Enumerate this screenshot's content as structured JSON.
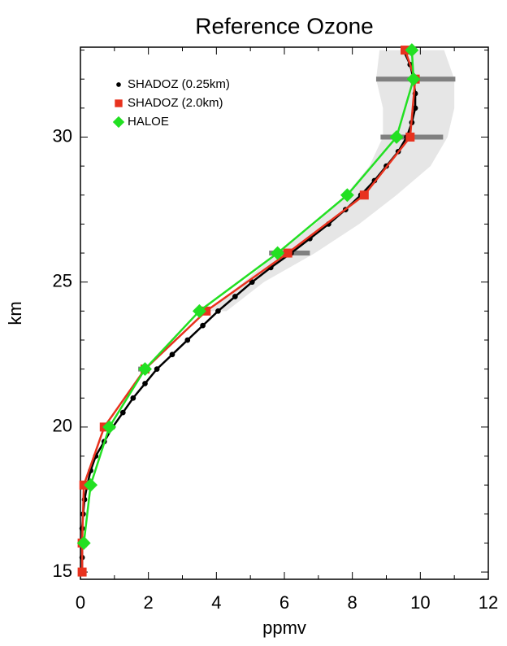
{
  "chart_data": {
    "type": "profile",
    "title": "Reference Ozone",
    "x_label": "ppmv",
    "y_label": "km",
    "xlim": [
      0,
      12
    ],
    "xticks": [
      0,
      2,
      4,
      6,
      8,
      10,
      12
    ],
    "xminorticks": [
      1,
      3,
      5,
      7,
      9,
      11
    ],
    "ylim": [
      14.75,
      33.1
    ],
    "yticks": [
      15,
      20,
      25,
      30
    ],
    "yminorticks": [
      16,
      17,
      18,
      19,
      21,
      22,
      23,
      24,
      26,
      27,
      28,
      29,
      31,
      32,
      33
    ],
    "band": {
      "color": "#e6e6e6",
      "y": [
        24,
        25,
        26,
        27,
        28,
        29,
        30,
        31,
        32,
        33
      ],
      "low": [
        3.8,
        4.8,
        5.8,
        6.9,
        7.8,
        8.5,
        8.9,
        8.9,
        8.7,
        8.8
      ],
      "high": [
        4.3,
        5.4,
        6.9,
        8.2,
        9.3,
        10.3,
        10.8,
        11.0,
        11.0,
        10.7
      ]
    },
    "error_bars": {
      "color": "#808080",
      "y": [
        22,
        26,
        30,
        32
      ],
      "low": [
        1.7,
        5.55,
        8.83,
        8.7
      ],
      "high": [
        2.05,
        6.75,
        10.67,
        11.03
      ]
    },
    "series": [
      {
        "name": "SHADOZ (0.25km)",
        "color": "#000000",
        "marker": "circle",
        "y": [
          15,
          15.5,
          16,
          16.5,
          17,
          17.5,
          18,
          18.5,
          19,
          19.5,
          20,
          20.5,
          21,
          21.5,
          22,
          22.5,
          23,
          23.5,
          24,
          24.5,
          25,
          25.5,
          26,
          26.5,
          27,
          27.5,
          28,
          28.5,
          29,
          29.5,
          30,
          30.5,
          31,
          31.5,
          32,
          32.5,
          33
        ],
        "values": [
          0.05,
          0.05,
          0.05,
          0.05,
          0.08,
          0.12,
          0.2,
          0.3,
          0.45,
          0.7,
          0.95,
          1.25,
          1.55,
          1.9,
          2.25,
          2.7,
          3.15,
          3.6,
          4.05,
          4.55,
          5.05,
          5.6,
          6.2,
          6.75,
          7.3,
          7.8,
          8.25,
          8.65,
          9.0,
          9.35,
          9.6,
          9.75,
          9.85,
          9.85,
          9.8,
          9.7,
          9.5
        ]
      },
      {
        "name": "SHADOZ (2.0km)",
        "color": "#e8321e",
        "marker": "square",
        "y": [
          15,
          16,
          18,
          20,
          22,
          24,
          26,
          28,
          30,
          32,
          33
        ],
        "values": [
          0.05,
          0.05,
          0.1,
          0.7,
          1.9,
          3.7,
          6.1,
          8.35,
          9.7,
          9.85,
          9.55
        ]
      },
      {
        "name": "HALOE",
        "color": "#22e022",
        "marker": "diamond",
        "y": [
          16,
          18,
          20,
          22,
          24,
          26,
          28,
          30,
          32,
          33
        ],
        "values": [
          0.1,
          0.3,
          0.85,
          1.9,
          3.5,
          5.8,
          7.85,
          9.3,
          9.8,
          9.75
        ]
      }
    ]
  }
}
